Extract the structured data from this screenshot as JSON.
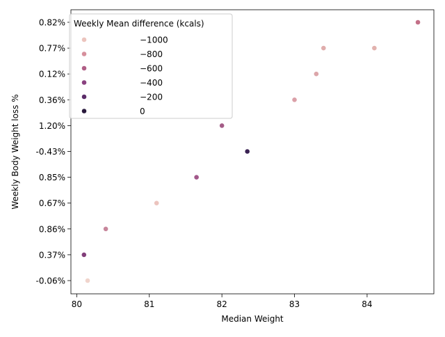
{
  "chart_data": {
    "type": "scatter",
    "xlabel": "Median Weight",
    "ylabel": "Weekly Body Weight loss %",
    "xlim": [
      79.92,
      84.92
    ],
    "x_ticks": [
      80,
      81,
      82,
      83,
      84
    ],
    "y_categories": [
      "-0.06%",
      "0.37%",
      "0.86%",
      "0.67%",
      "0.85%",
      "-0.43%",
      "1.20%",
      "0.36%",
      "0.12%",
      "0.77%",
      "0.82%"
    ],
    "grid": false,
    "legend": {
      "title": "Weekly Mean difference (kcals)",
      "placement": "top-left",
      "entries": [
        {
          "label": "−1000",
          "color": "#ecc4be"
        },
        {
          "label": "−800",
          "color": "#d68f9c"
        },
        {
          "label": "−600",
          "color": "#b05f86"
        },
        {
          "label": "−400",
          "color": "#8a4180"
        },
        {
          "label": "−200",
          "color": "#5b2c69"
        },
        {
          "label": "0",
          "color": "#2a1a3d"
        }
      ]
    },
    "points": [
      {
        "x": 80.15,
        "y": "-0.06%",
        "kcal": -1100,
        "color": "#f0d4cc"
      },
      {
        "x": 80.1,
        "y": "0.37%",
        "kcal": -420,
        "color": "#823e7a"
      },
      {
        "x": 80.4,
        "y": "0.86%",
        "kcal": -780,
        "color": "#c7869b"
      },
      {
        "x": 81.1,
        "y": "0.67%",
        "kcal": -1000,
        "color": "#ecc4be"
      },
      {
        "x": 81.65,
        "y": "0.85%",
        "kcal": -540,
        "color": "#a2588a"
      },
      {
        "x": 82.35,
        "y": "-0.43%",
        "kcal": -80,
        "color": "#3a2253"
      },
      {
        "x": 82.0,
        "y": "1.20%",
        "kcal": -570,
        "color": "#a45c87"
      },
      {
        "x": 83.0,
        "y": "0.36%",
        "kcal": -880,
        "color": "#dba0a8"
      },
      {
        "x": 83.3,
        "y": "0.12%",
        "kcal": -900,
        "color": "#dca6aa"
      },
      {
        "x": 83.4,
        "y": "0.77%",
        "kcal": -930,
        "color": "#e0adac"
      },
      {
        "x": 84.1,
        "y": "0.77%",
        "kcal": -950,
        "color": "#e2b2ae"
      },
      {
        "x": 84.7,
        "y": "0.82%",
        "kcal": -720,
        "color": "#c37088"
      }
    ]
  }
}
